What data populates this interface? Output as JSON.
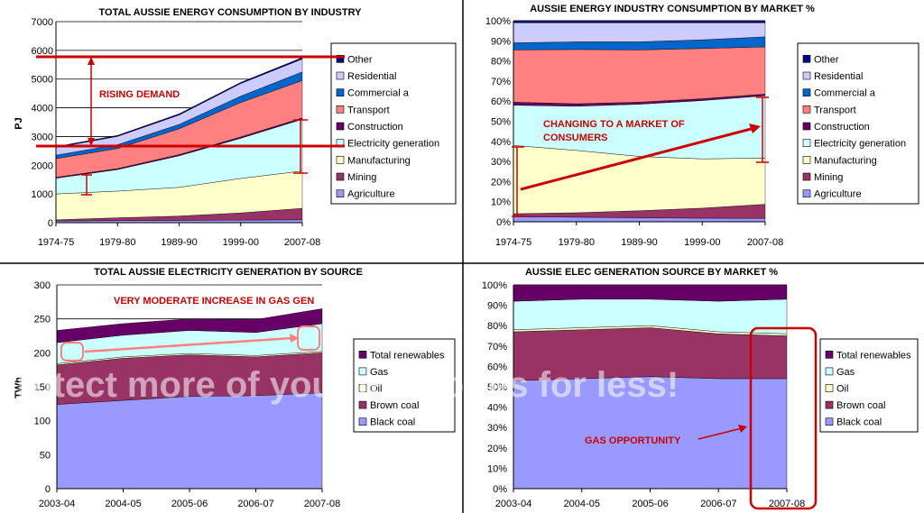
{
  "colors": {
    "agriculture": "#9999ff",
    "mining": "#993366",
    "manufacturing": "#ffffcc",
    "electricity": "#ccffff",
    "construction": "#660066",
    "transport": "#ff8080",
    "commercial": "#0066cc",
    "residential": "#ccccff",
    "other": "#000080",
    "black_coal": "#9999ff",
    "brown_coal": "#993366",
    "oil": "#ffffcc",
    "gas": "#ccffff",
    "renewables": "#660066",
    "annotation": "#cc0000"
  },
  "chart_data": [
    {
      "type": "area",
      "stacked": true,
      "title": "TOTAL AUSSIE ENERGY CONSUMPTION BY INDUSTRY",
      "ylabel": "PJ",
      "xlabel": "",
      "ylim": [
        0,
        7000
      ],
      "yticks": [
        "0",
        "1000",
        "2000",
        "3000",
        "4000",
        "5000",
        "6000",
        "7000"
      ],
      "categories": [
        "1974-75",
        "1979-80",
        "1989-90",
        "1999-00",
        "2007-08"
      ],
      "grid": true,
      "legend_position": "right",
      "series": [
        {
          "name": "Agriculture",
          "color_key": "agriculture",
          "values": [
            60,
            70,
            80,
            90,
            100
          ]
        },
        {
          "name": "Mining",
          "color_key": "mining",
          "values": [
            40,
            100,
            150,
            250,
            400
          ]
        },
        {
          "name": "Manufacturing",
          "color_key": "manufacturing",
          "values": [
            900,
            930,
            1000,
            1200,
            1300
          ]
        },
        {
          "name": "Electricity generation",
          "color_key": "electricity",
          "values": [
            550,
            750,
            1100,
            1400,
            1800
          ]
        },
        {
          "name": "Construction",
          "color_key": "construction",
          "values": [
            30,
            35,
            40,
            45,
            50
          ]
        },
        {
          "name": "Transport",
          "color_key": "transport",
          "values": [
            650,
            700,
            900,
            1200,
            1300
          ]
        },
        {
          "name": "Commercial a",
          "color_key": "commercial",
          "values": [
            120,
            130,
            150,
            220,
            300
          ]
        },
        {
          "name": "Residential",
          "color_key": "residential",
          "values": [
            270,
            290,
            330,
            440,
            450
          ]
        },
        {
          "name": "Other",
          "color_key": "other",
          "values": [
            30,
            35,
            40,
            40,
            50
          ]
        }
      ],
      "annotations": [
        {
          "text": "RISING DEMAND"
        }
      ]
    },
    {
      "type": "area",
      "stacked": true,
      "title": "AUSSIE ENERGY INDUSTRY CONSUMPTION BY MARKET %",
      "ylabel": "",
      "xlabel": "",
      "ylim": [
        0,
        100
      ],
      "yticks": [
        "0%",
        "10%",
        "20%",
        "30%",
        "40%",
        "50%",
        "60%",
        "70%",
        "80%",
        "90%",
        "100%"
      ],
      "categories": [
        "1974-75",
        "1979-80",
        "1989-90",
        "1999-00",
        "2007-08"
      ],
      "grid": true,
      "legend_position": "right",
      "series": [
        {
          "name": "Agriculture",
          "color_key": "agriculture",
          "values": [
            2.5,
            2.3,
            2,
            1.8,
            1.7
          ]
        },
        {
          "name": "Mining",
          "color_key": "mining",
          "values": [
            1.5,
            2.2,
            3.5,
            5,
            7
          ]
        },
        {
          "name": "Manufacturing",
          "color_key": "manufacturing",
          "values": [
            34,
            31,
            27,
            24.5,
            23
          ]
        },
        {
          "name": "Electricity generation",
          "color_key": "electricity",
          "values": [
            20,
            22,
            26,
            29,
            31
          ]
        },
        {
          "name": "Construction",
          "color_key": "construction",
          "values": [
            1.5,
            1.2,
            1,
            0.9,
            0.8
          ]
        },
        {
          "name": "Transport",
          "color_key": "transport",
          "values": [
            26,
            27,
            26,
            25,
            23.5
          ]
        },
        {
          "name": "Commercial a",
          "color_key": "commercial",
          "values": [
            3.5,
            3.8,
            4,
            4.3,
            5
          ]
        },
        {
          "name": "Residential",
          "color_key": "residential",
          "values": [
            10,
            9.5,
            9.5,
            8.5,
            7
          ]
        },
        {
          "name": "Other",
          "color_key": "other",
          "values": [
            1,
            1,
            1,
            1,
            1
          ]
        }
      ],
      "annotations": [
        {
          "text": "CHANGING TO A MARKET OF CONSUMERS"
        }
      ]
    },
    {
      "type": "area",
      "stacked": true,
      "title": "TOTAL AUSSIE ELECTRICITY GENERATION BY SOURCE",
      "ylabel": "TWh",
      "xlabel": "",
      "ylim": [
        0,
        300
      ],
      "yticks": [
        "0",
        "50",
        "100",
        "150",
        "200",
        "250",
        "300"
      ],
      "categories": [
        "2003-04",
        "2004-05",
        "2005-06",
        "2006-07",
        "2007-08"
      ],
      "grid": true,
      "legend_position": "right",
      "series": [
        {
          "name": "Black coal",
          "color_key": "black_coal",
          "values": [
            124,
            130,
            136,
            137,
            141
          ]
        },
        {
          "name": "Brown coal",
          "color_key": "brown_coal",
          "values": [
            58,
            62,
            61,
            57,
            59
          ]
        },
        {
          "name": "Oil",
          "color_key": "oil",
          "values": [
            2,
            2,
            2,
            2,
            2
          ]
        },
        {
          "name": "Gas",
          "color_key": "gas",
          "values": [
            31,
            32,
            34,
            34,
            41
          ]
        },
        {
          "name": "Total renewables",
          "color_key": "renewables",
          "values": [
            18,
            17,
            17,
            19,
            22
          ]
        }
      ],
      "annotations": [
        {
          "text": "VERY MODERATE INCREASE IN GAS GEN"
        }
      ]
    },
    {
      "type": "area",
      "stacked": true,
      "title": "AUSSIE ELEC GENERATION SOURCE BY MARKET %",
      "ylabel": "",
      "xlabel": "",
      "ylim": [
        0,
        100
      ],
      "yticks": [
        "0%",
        "10%",
        "20%",
        "30%",
        "40%",
        "50%",
        "60%",
        "70%",
        "80%",
        "90%",
        "100%"
      ],
      "categories": [
        "2003-04",
        "2004-05",
        "2005-06",
        "2006-07",
        "2007-08"
      ],
      "grid": true,
      "legend_position": "right",
      "series": [
        {
          "name": "Black coal",
          "color_key": "black_coal",
          "values": [
            53,
            54,
            55,
            54,
            54
          ]
        },
        {
          "name": "Brown coal",
          "color_key": "brown_coal",
          "values": [
            24,
            24,
            24,
            22,
            21
          ]
        },
        {
          "name": "Oil",
          "color_key": "oil",
          "values": [
            1,
            1,
            1,
            1,
            1
          ]
        },
        {
          "name": "Gas",
          "color_key": "gas",
          "values": [
            14,
            14,
            13,
            15,
            17
          ]
        },
        {
          "name": "Total renewables",
          "color_key": "renewables",
          "values": [
            8,
            7,
            7,
            8,
            7
          ]
        }
      ],
      "annotations": [
        {
          "text": "GAS OPPORTUNITY"
        }
      ]
    }
  ]
}
